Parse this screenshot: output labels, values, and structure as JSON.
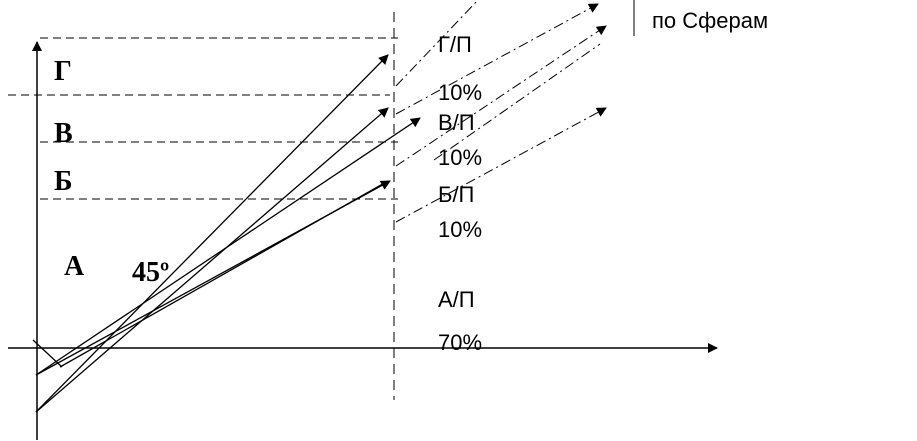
{
  "diagram": {
    "legend_text": "по Сферам",
    "levels": [
      {
        "letter": "Г",
        "label": "Г/П",
        "percent": "10%"
      },
      {
        "letter": "В",
        "label": "В/П",
        "percent": "10%"
      },
      {
        "letter": "Б",
        "label": "Б/П",
        "percent": "10%"
      },
      {
        "letter": "А",
        "label": "А/П",
        "percent": "70%"
      }
    ],
    "angle_label": "45º"
  }
}
